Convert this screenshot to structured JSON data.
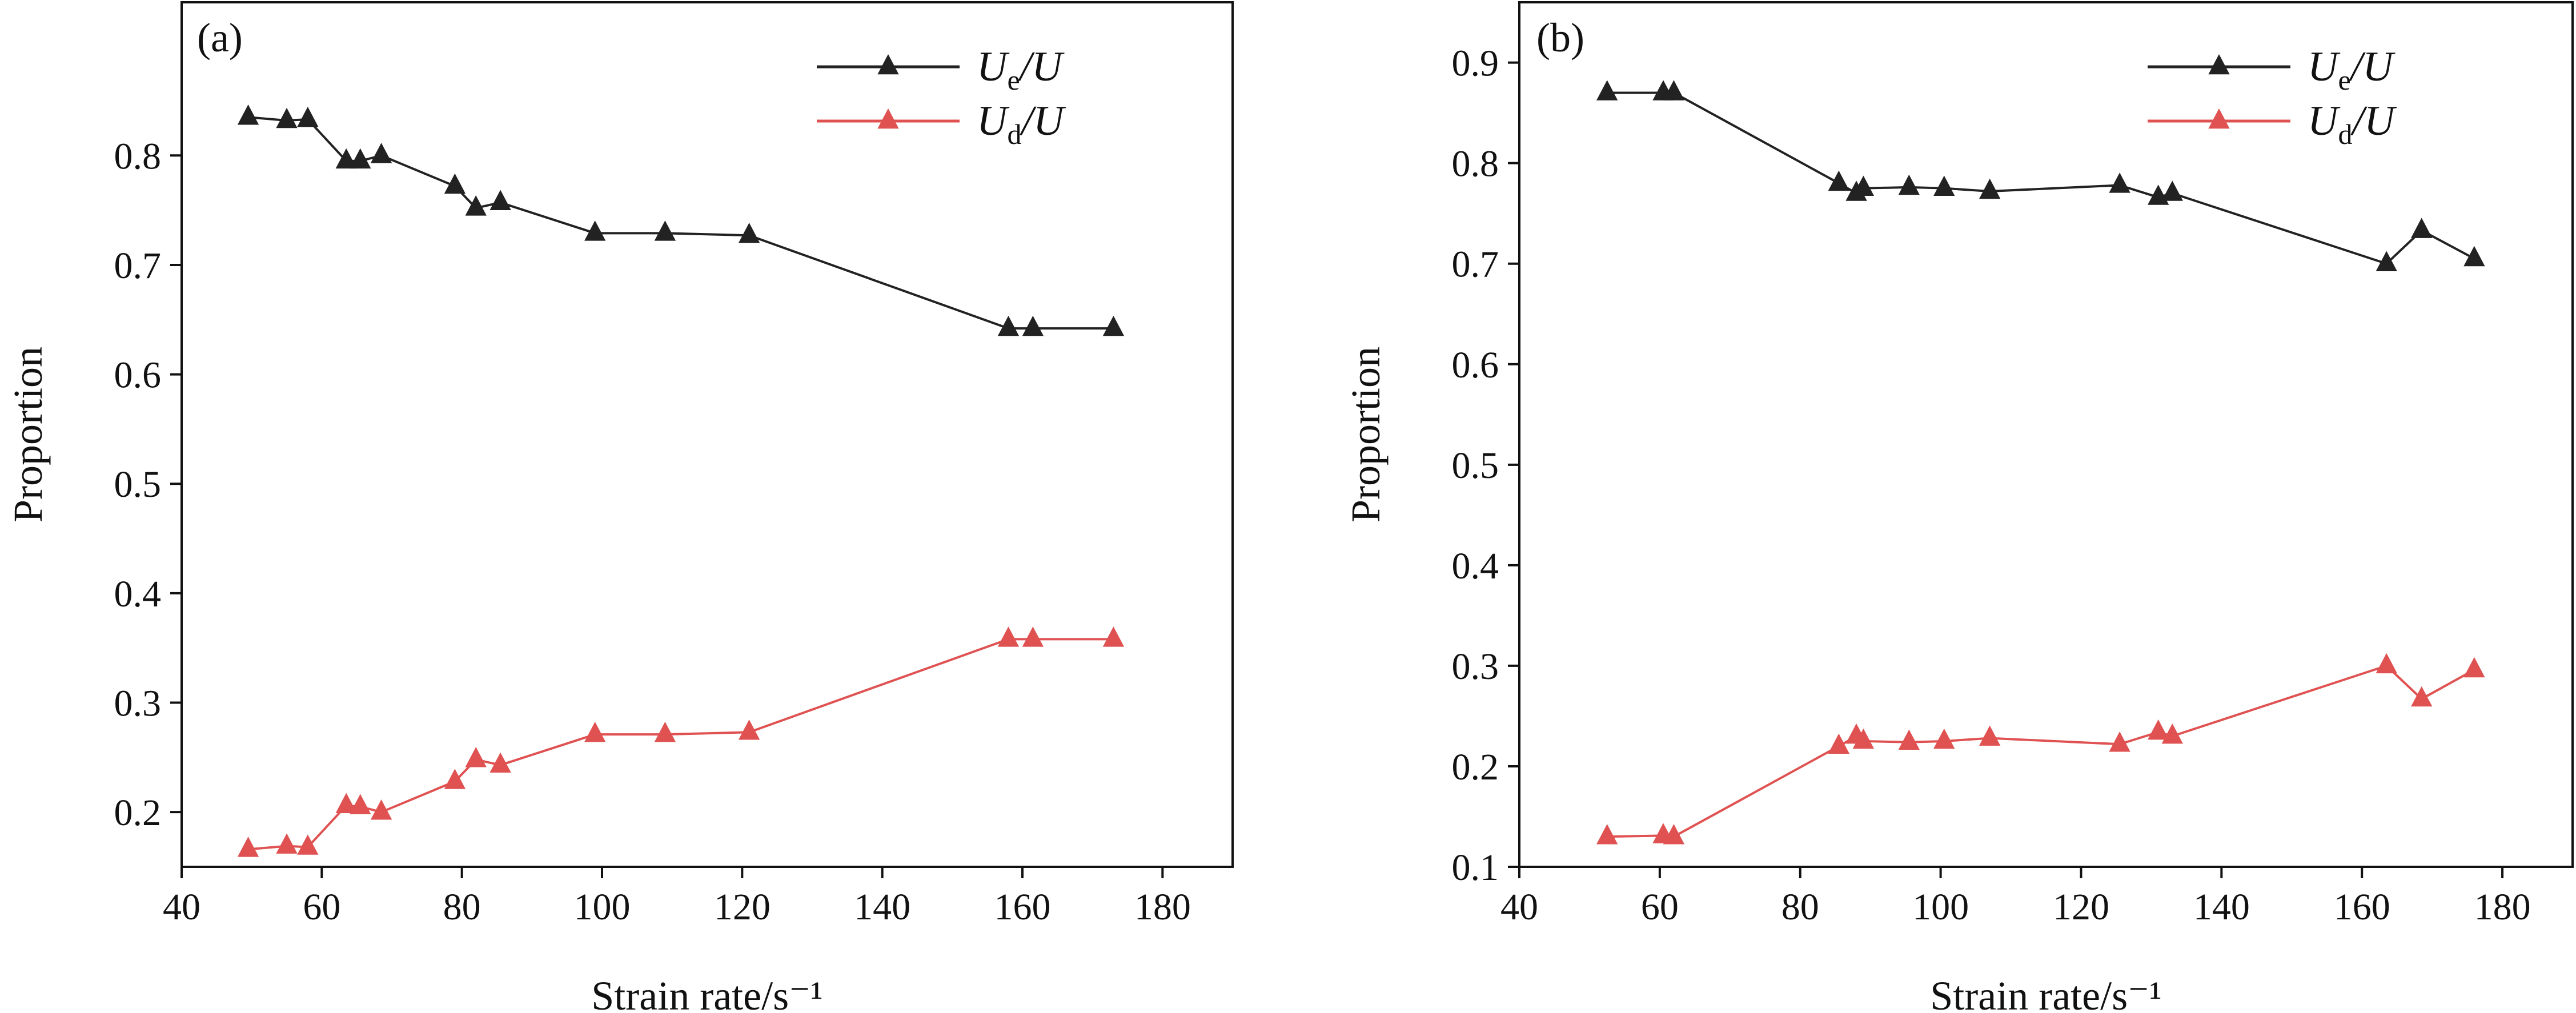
{
  "chart_data": [
    {
      "type": "line",
      "panel_label": "(a)",
      "xlabel": "Strain rate/s⁻¹",
      "ylabel": "Proportion",
      "xlim": [
        40,
        190
      ],
      "ylim": [
        0.15,
        0.94
      ],
      "xticks": [
        40,
        60,
        80,
        100,
        120,
        140,
        160,
        180
      ],
      "yticks": [
        0.2,
        0.3,
        0.4,
        0.5,
        0.6,
        0.7,
        0.8
      ],
      "ytick_decimals": 1,
      "legend_position": "top-right",
      "x": [
        49.5,
        55,
        58,
        63.5,
        65.5,
        68.5,
        79,
        82,
        85.5,
        99,
        109,
        121,
        158,
        161.5,
        173
      ],
      "series": [
        {
          "name": "Ue/U",
          "label_main": "U",
          "label_sub": "e",
          "label_tail": "/U",
          "color": "#222222",
          "values": [
            0.835,
            0.832,
            0.833,
            0.795,
            0.795,
            0.8,
            0.772,
            0.752,
            0.757,
            0.729,
            0.729,
            0.727,
            0.642,
            0.642,
            0.642
          ]
        },
        {
          "name": "Ud/U",
          "label_main": "U",
          "label_sub": "d",
          "label_tail": "/U",
          "color": "#e05252",
          "values": [
            0.166,
            0.169,
            0.168,
            0.206,
            0.205,
            0.2,
            0.228,
            0.248,
            0.243,
            0.271,
            0.271,
            0.273,
            0.358,
            0.358,
            0.358
          ]
        }
      ]
    },
    {
      "type": "line",
      "panel_label": "(b)",
      "xlabel": "Strain rate/s⁻¹",
      "ylabel": "Proportion",
      "xlim": [
        40,
        190
      ],
      "ylim": [
        0.1,
        0.96
      ],
      "xticks": [
        40,
        60,
        80,
        100,
        120,
        140,
        160,
        180
      ],
      "yticks": [
        0.1,
        0.2,
        0.3,
        0.4,
        0.5,
        0.6,
        0.7,
        0.8,
        0.9
      ],
      "ytick_decimals": 1,
      "legend_position": "top-right",
      "x": [
        52.5,
        60.5,
        62,
        85.5,
        88,
        89,
        95.5,
        100.5,
        107,
        125.5,
        131,
        133,
        163.5,
        168.5,
        176
      ],
      "series": [
        {
          "name": "Ue/U",
          "label_main": "U",
          "label_sub": "e",
          "label_tail": "/U",
          "color": "#222222",
          "values": [
            0.87,
            0.87,
            0.87,
            0.78,
            0.77,
            0.775,
            0.776,
            0.775,
            0.772,
            0.778,
            0.766,
            0.77,
            0.7,
            0.733,
            0.705
          ]
        },
        {
          "name": "Ud/U",
          "label_main": "U",
          "label_sub": "d",
          "label_tail": "/U",
          "color": "#e05252",
          "values": [
            0.13,
            0.131,
            0.13,
            0.22,
            0.23,
            0.225,
            0.224,
            0.225,
            0.228,
            0.222,
            0.234,
            0.23,
            0.3,
            0.267,
            0.296
          ]
        }
      ]
    }
  ]
}
